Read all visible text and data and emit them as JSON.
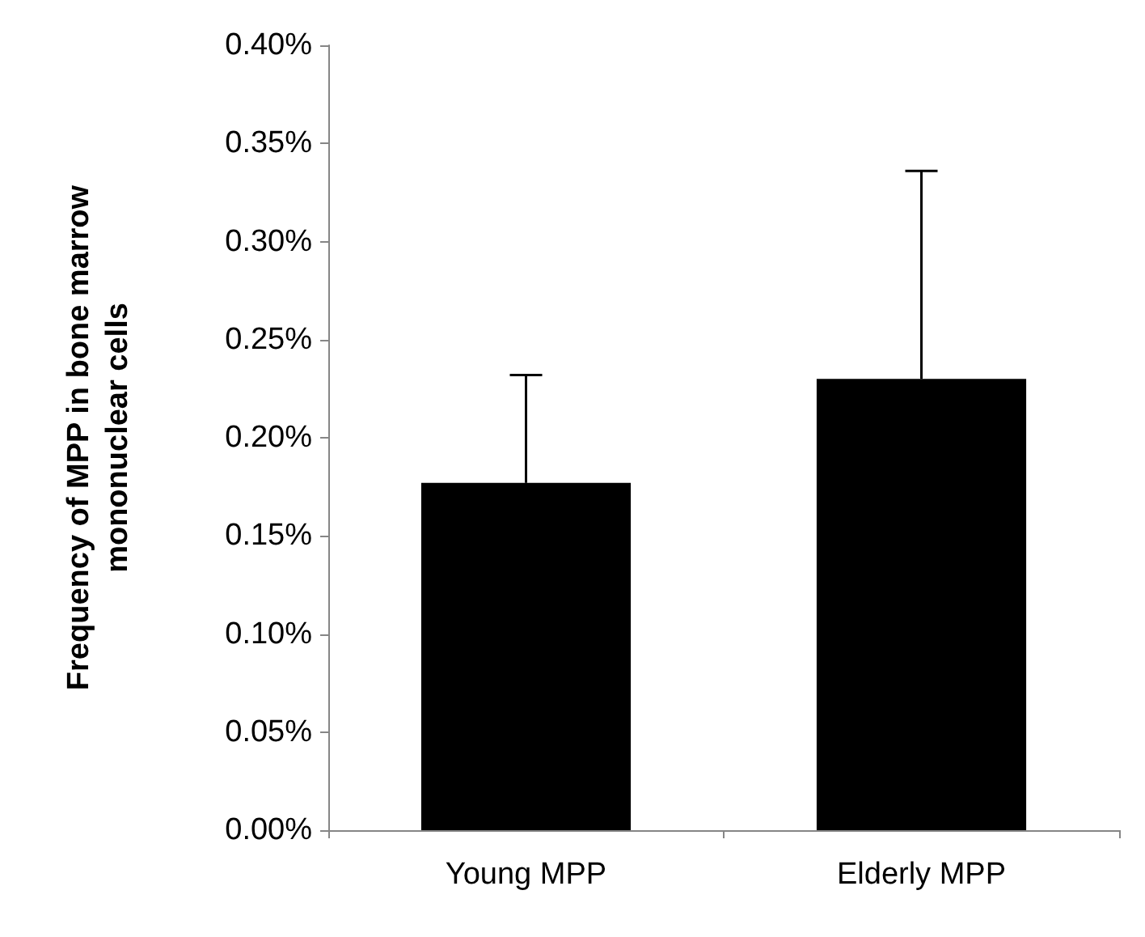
{
  "chart_data": {
    "type": "bar",
    "ylabel": "Frequency of MPP in bone marrow\nmononuclear cells",
    "categories": [
      "Young MPP",
      "Elderly MPP"
    ],
    "values": [
      0.177,
      0.23
    ],
    "color": "#000000",
    "errors": [
      [
        0.177,
        0.232
      ],
      [
        0.23,
        0.336
      ]
    ],
    "ylim": [
      0,
      0.4
    ],
    "yticks": [
      {
        "value": 0,
        "label": "0.00%"
      },
      {
        "value": 0.05,
        "label": "0.05%"
      },
      {
        "value": 0.1,
        "label": "0.10%"
      },
      {
        "value": 0.15,
        "label": "0.15%"
      },
      {
        "value": 0.2,
        "label": "0.20%"
      },
      {
        "value": 0.25,
        "label": "0.25%"
      },
      {
        "value": 0.3,
        "label": "0.30%"
      },
      {
        "value": 0.35,
        "label": "0.35%"
      },
      {
        "value": 0.4,
        "label": "0.40%"
      }
    ],
    "grid": false
  }
}
